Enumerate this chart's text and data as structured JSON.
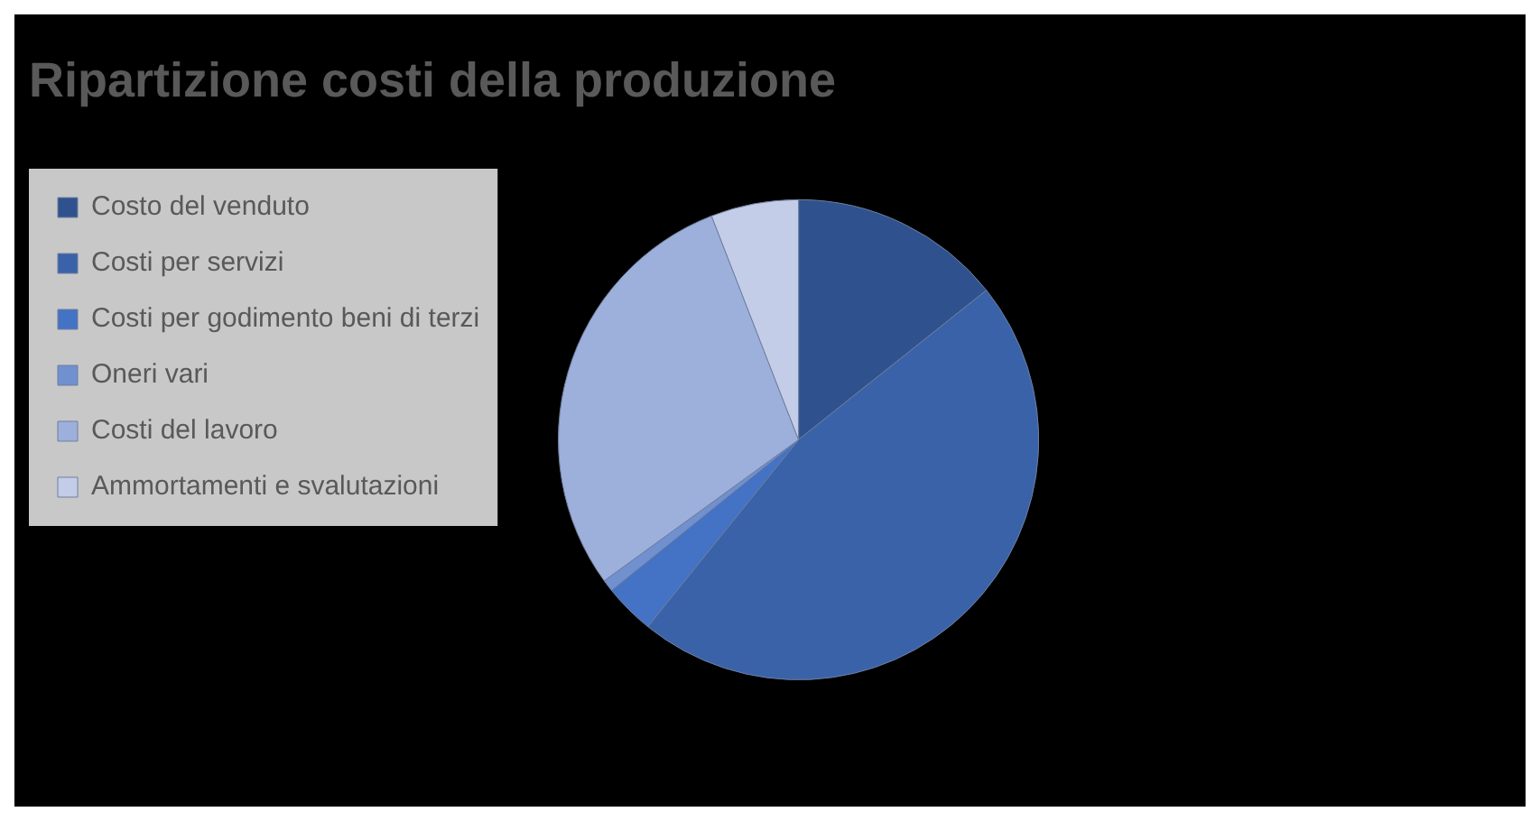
{
  "chart_data": {
    "type": "pie",
    "title": "Ripartizione costi della produzione",
    "categories": [
      "Costo del venduto",
      "Costi per servizi",
      "Costi per godimento beni di terzi",
      "Oneri vari",
      "Costi del lavoro",
      "Ammortamenti e svalutazioni"
    ],
    "values": [
      14.3,
      46.5,
      3.4,
      0.8,
      29.1,
      5.9
    ],
    "colors": [
      "#2f528f",
      "#3a62a8",
      "#4472c4",
      "#7190d0",
      "#9dafdb",
      "#c3cde8"
    ],
    "legend": "left"
  }
}
